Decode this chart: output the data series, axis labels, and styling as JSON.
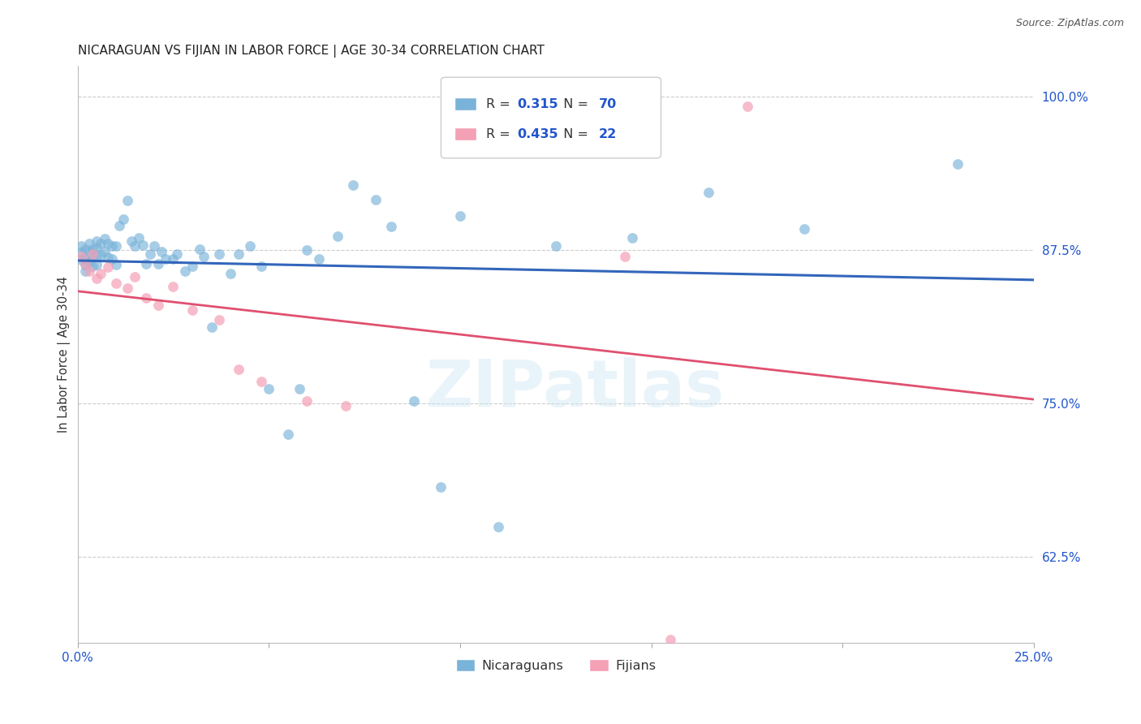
{
  "title": "NICARAGUAN VS FIJIAN IN LABOR FORCE | AGE 30-34 CORRELATION CHART",
  "source": "Source: ZipAtlas.com",
  "ylabel": "In Labor Force | Age 30-34",
  "xlim": [
    0.0,
    0.25
  ],
  "ylim": [
    0.555,
    1.025
  ],
  "xtick_positions": [
    0.0,
    0.05,
    0.1,
    0.15,
    0.2,
    0.25
  ],
  "xticklabels": [
    "0.0%",
    "",
    "",
    "",
    "",
    "25.0%"
  ],
  "ytick_positions": [
    0.625,
    0.75,
    0.875,
    1.0
  ],
  "yticklabels": [
    "62.5%",
    "75.0%",
    "87.5%",
    "100.0%"
  ],
  "blue_R": 0.315,
  "blue_N": 70,
  "pink_R": 0.435,
  "pink_N": 22,
  "blue_color": "#7ab3d9",
  "pink_color": "#f4a0b5",
  "blue_line_color": "#3366bb",
  "pink_line_color": "#e05070",
  "background_color": "#ffffff",
  "blue_x": [
    0.001,
    0.001,
    0.001,
    0.002,
    0.002,
    0.002,
    0.002,
    0.003,
    0.003,
    0.003,
    0.004,
    0.004,
    0.004,
    0.005,
    0.005,
    0.005,
    0.005,
    0.006,
    0.006,
    0.007,
    0.007,
    0.008,
    0.008,
    0.009,
    0.009,
    0.01,
    0.01,
    0.011,
    0.012,
    0.013,
    0.014,
    0.015,
    0.016,
    0.017,
    0.018,
    0.019,
    0.02,
    0.021,
    0.022,
    0.023,
    0.025,
    0.026,
    0.028,
    0.03,
    0.032,
    0.033,
    0.035,
    0.037,
    0.04,
    0.042,
    0.045,
    0.048,
    0.05,
    0.055,
    0.058,
    0.06,
    0.063,
    0.068,
    0.072,
    0.078,
    0.082,
    0.088,
    0.095,
    0.1,
    0.11,
    0.125,
    0.145,
    0.165,
    0.19,
    0.23
  ],
  "blue_y": [
    0.878,
    0.873,
    0.867,
    0.876,
    0.868,
    0.863,
    0.858,
    0.88,
    0.874,
    0.866,
    0.876,
    0.87,
    0.862,
    0.882,
    0.877,
    0.87,
    0.863,
    0.88,
    0.871,
    0.884,
    0.874,
    0.88,
    0.869,
    0.878,
    0.868,
    0.878,
    0.863,
    0.895,
    0.9,
    0.915,
    0.882,
    0.878,
    0.885,
    0.879,
    0.864,
    0.872,
    0.878,
    0.864,
    0.874,
    0.868,
    0.868,
    0.872,
    0.858,
    0.862,
    0.876,
    0.87,
    0.812,
    0.872,
    0.856,
    0.872,
    0.878,
    0.862,
    0.762,
    0.725,
    0.762,
    0.875,
    0.868,
    0.886,
    0.928,
    0.916,
    0.894,
    0.752,
    0.682,
    0.903,
    0.65,
    0.878,
    0.885,
    0.922,
    0.892,
    0.945
  ],
  "pink_x": [
    0.001,
    0.002,
    0.003,
    0.004,
    0.005,
    0.006,
    0.008,
    0.01,
    0.013,
    0.015,
    0.018,
    0.021,
    0.025,
    0.03,
    0.037,
    0.042,
    0.048,
    0.06,
    0.07,
    0.143,
    0.155,
    0.175
  ],
  "pink_y": [
    0.87,
    0.864,
    0.858,
    0.872,
    0.852,
    0.856,
    0.861,
    0.848,
    0.844,
    0.853,
    0.836,
    0.83,
    0.845,
    0.826,
    0.818,
    0.778,
    0.768,
    0.752,
    0.748,
    0.87,
    0.558,
    0.992
  ],
  "watermark_text": "ZIPatlas",
  "watermark_color": "#d0e8f5",
  "watermark_alpha": 0.45,
  "legend_label_blue": "Nicaraguans",
  "legend_label_pink": "Fijians"
}
